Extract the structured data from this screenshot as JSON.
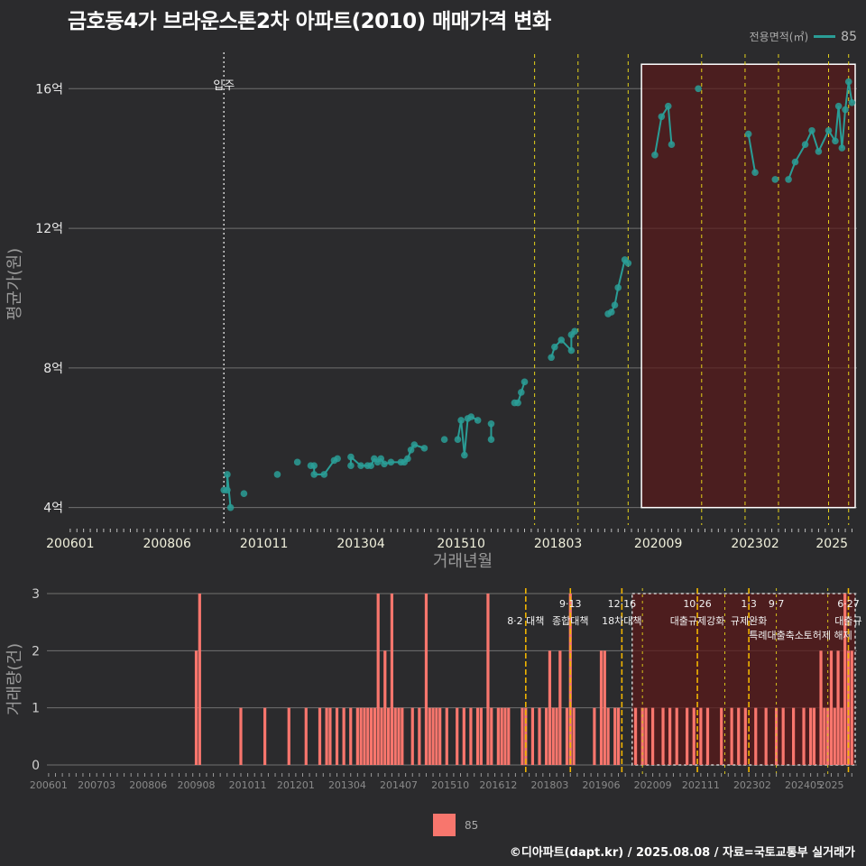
{
  "title": "금호동4가 브라운스톤2차 아파트(2010) 매매가격 변화",
  "legend_top": {
    "title": "전용면적(㎡)",
    "label": "85",
    "color": "#2a9d96"
  },
  "legend_bottom": {
    "label": "85",
    "color": "#f8766d"
  },
  "credit": "©디아파트(dapt.kr) / 2025.08.08 / 자료=국토교통부 실거래가",
  "chart_data": [
    {
      "type": "line",
      "name": "price",
      "xlabel": "거래년월",
      "ylabel": "평균가(원)",
      "x_range": [
        "2006-01",
        "2025-08"
      ],
      "ylim": [
        3.5,
        17.3
      ],
      "yticks": [
        {
          "v": 4,
          "label": "4억"
        },
        {
          "v": 8,
          "label": "8억"
        },
        {
          "v": 12,
          "label": "12억"
        },
        {
          "v": 16,
          "label": "16억"
        }
      ],
      "xticks": [
        "200601",
        "200806",
        "201011",
        "201304",
        "201510",
        "201803",
        "202009",
        "202302",
        "2025"
      ],
      "annotation": {
        "x": "2009-11",
        "label": "입주"
      },
      "policy_lines": [
        "2017-08",
        "2018-09",
        "2019-12",
        "2021-10",
        "2022-11",
        "2023-09",
        "2024-12",
        "2025-06"
      ],
      "highlight": {
        "from": "2020-04",
        "to": "2025-08",
        "ymin": 4,
        "ymax": 16.7
      },
      "series": [
        {
          "name": "85",
          "points": [
            [
              "2009-11",
              4.5
            ],
            [
              "2009-12",
              4.5
            ],
            [
              "2009-12",
              4.95
            ],
            [
              "2010-01",
              4.0
            ],
            [
              "2010-05",
              4.4
            ],
            [
              "2011-03",
              4.95
            ],
            [
              "2011-09",
              5.3
            ],
            [
              "2012-01",
              5.2
            ],
            [
              "2012-02",
              5.2
            ],
            [
              "2012-02",
              4.95
            ],
            [
              "2012-05",
              4.95
            ],
            [
              "2012-08",
              5.35
            ],
            [
              "2012-09",
              5.4
            ],
            [
              "2013-01",
              5.2
            ],
            [
              "2013-01",
              5.45
            ],
            [
              "2013-04",
              5.2
            ],
            [
              "2013-06",
              5.2
            ],
            [
              "2013-07",
              5.2
            ],
            [
              "2013-08",
              5.4
            ],
            [
              "2013-09",
              5.3
            ],
            [
              "2013-10",
              5.4
            ],
            [
              "2013-11",
              5.25
            ],
            [
              "2014-01",
              5.3
            ],
            [
              "2014-04",
              5.3
            ],
            [
              "2014-05",
              5.3
            ],
            [
              "2014-06",
              5.4
            ],
            [
              "2014-07",
              5.65
            ],
            [
              "2014-08",
              5.8
            ],
            [
              "2014-11",
              5.7
            ],
            [
              "2015-05",
              5.95
            ],
            [
              "2015-09",
              5.95
            ],
            [
              "2015-10",
              6.5
            ],
            [
              "2015-11",
              5.5
            ],
            [
              "2015-12",
              6.55
            ],
            [
              "2016-01",
              6.6
            ],
            [
              "2016-03",
              6.5
            ],
            [
              "2016-07",
              5.95
            ],
            [
              "2016-07",
              6.4
            ],
            [
              "2017-02",
              7.0
            ],
            [
              "2017-03",
              7.0
            ],
            [
              "2017-04",
              7.3
            ],
            [
              "2017-05",
              7.6
            ],
            [
              "2018-01",
              8.3
            ],
            [
              "2018-02",
              8.6
            ],
            [
              "2018-04",
              8.8
            ],
            [
              "2018-07",
              8.5
            ],
            [
              "2018-07",
              8.95
            ],
            [
              "2018-08",
              9.05
            ],
            [
              "2019-06",
              9.55
            ],
            [
              "2019-07",
              9.6
            ],
            [
              "2019-08",
              9.8
            ],
            [
              "2019-09",
              10.3
            ],
            [
              "2019-11",
              11.1
            ],
            [
              "2019-12",
              11.0
            ],
            [
              "2020-08",
              14.1
            ],
            [
              "2020-10",
              15.2
            ],
            [
              "2020-12",
              15.5
            ],
            [
              "2021-01",
              14.4
            ],
            [
              "2021-09",
              16.0
            ],
            [
              "2022-12",
              14.7
            ],
            [
              "2023-02",
              13.6
            ],
            [
              "2023-08",
              13.4
            ],
            [
              "2023-12",
              13.4
            ],
            [
              "2024-02",
              13.9
            ],
            [
              "2024-05",
              14.4
            ],
            [
              "2024-07",
              14.8
            ],
            [
              "2024-09",
              14.2
            ],
            [
              "2024-12",
              14.8
            ],
            [
              "2025-02",
              14.5
            ],
            [
              "2025-03",
              15.5
            ],
            [
              "2025-04",
              14.3
            ],
            [
              "2025-05",
              15.4
            ],
            [
              "2025-06",
              16.2
            ],
            [
              "2025-07",
              15.6
            ]
          ]
        }
      ]
    },
    {
      "type": "bar",
      "name": "volume",
      "ylabel": "거래량(건)",
      "ylim": [
        0,
        3
      ],
      "yticks": [
        0,
        1,
        2,
        3
      ],
      "xticks": [
        "200601",
        "200703",
        "200806",
        "200908",
        "201011",
        "201201",
        "201304",
        "201407",
        "201510",
        "201612",
        "201803",
        "201906",
        "202009",
        "202111",
        "202302",
        "202405",
        "2025"
      ],
      "highlight": {
        "from": "2020-03",
        "to": "2025-08",
        "ymin": 0,
        "ymax": 3
      },
      "policies": [
        {
          "x": "2017-08",
          "date": "",
          "text": "8·2 대책",
          "row": 1
        },
        {
          "x": "2018-09",
          "date": "9·13",
          "text": "종합대책",
          "row": 1
        },
        {
          "x": "2019-12",
          "date": "12·16",
          "text": "18차대책",
          "row": 1
        },
        {
          "x": "2020-06",
          "date": "",
          "text": "",
          "row": 0
        },
        {
          "x": "2021-10",
          "date": "10·26",
          "text": "대출규제강화",
          "row": 1
        },
        {
          "x": "2022-06",
          "date": "",
          "text": "",
          "row": 0
        },
        {
          "x": "2023-01",
          "date": "1·3",
          "text": "규제완화",
          "row": 1
        },
        {
          "x": "2023-09",
          "date": "9·7",
          "text": "특례대출축소",
          "row": 2
        },
        {
          "x": "2024-12",
          "date": "",
          "text": "토허제 해제",
          "row": 2
        },
        {
          "x": "2025-06",
          "date": "6·27",
          "text": "대출규",
          "row": 1
        }
      ],
      "bars": [
        [
          "2009-08",
          2
        ],
        [
          "2009-09",
          3
        ],
        [
          "2010-09",
          1
        ],
        [
          "2011-04",
          1
        ],
        [
          "2011-11",
          1
        ],
        [
          "2012-04",
          1
        ],
        [
          "2012-08",
          1
        ],
        [
          "2012-10",
          1
        ],
        [
          "2012-11",
          1
        ],
        [
          "2013-01",
          1
        ],
        [
          "2013-03",
          1
        ],
        [
          "2013-05",
          1
        ],
        [
          "2013-07",
          1
        ],
        [
          "2013-08",
          1
        ],
        [
          "2013-09",
          1
        ],
        [
          "2013-10",
          1
        ],
        [
          "2013-11",
          1
        ],
        [
          "2013-12",
          1
        ],
        [
          "2014-01",
          3
        ],
        [
          "2014-02",
          1
        ],
        [
          "2014-03",
          2
        ],
        [
          "2014-04",
          1
        ],
        [
          "2014-05",
          3
        ],
        [
          "2014-06",
          1
        ],
        [
          "2014-07",
          1
        ],
        [
          "2014-08",
          1
        ],
        [
          "2014-11",
          1
        ],
        [
          "2015-01",
          1
        ],
        [
          "2015-03",
          3
        ],
        [
          "2015-04",
          1
        ],
        [
          "2015-05",
          1
        ],
        [
          "2015-06",
          1
        ],
        [
          "2015-07",
          1
        ],
        [
          "2015-09",
          1
        ],
        [
          "2015-12",
          1
        ],
        [
          "2016-02",
          1
        ],
        [
          "2016-04",
          1
        ],
        [
          "2016-06",
          1
        ],
        [
          "2016-07",
          1
        ],
        [
          "2016-09",
          3
        ],
        [
          "2016-10",
          1
        ],
        [
          "2016-12",
          1
        ],
        [
          "2017-01",
          1
        ],
        [
          "2017-02",
          1
        ],
        [
          "2017-03",
          1
        ],
        [
          "2017-07",
          1
        ],
        [
          "2017-08",
          1
        ],
        [
          "2017-10",
          1
        ],
        [
          "2017-12",
          1
        ],
        [
          "2018-02",
          1
        ],
        [
          "2018-03",
          2
        ],
        [
          "2018-04",
          1
        ],
        [
          "2018-05",
          1
        ],
        [
          "2018-06",
          2
        ],
        [
          "2018-08",
          1
        ],
        [
          "2018-09",
          3
        ],
        [
          "2018-10",
          1
        ],
        [
          "2019-04",
          1
        ],
        [
          "2019-06",
          2
        ],
        [
          "2019-07",
          2
        ],
        [
          "2019-08",
          1
        ],
        [
          "2019-10",
          1
        ],
        [
          "2019-11",
          1
        ],
        [
          "2020-04",
          1
        ],
        [
          "2020-06",
          1
        ],
        [
          "2020-07",
          1
        ],
        [
          "2020-09",
          1
        ],
        [
          "2020-12",
          1
        ],
        [
          "2021-02",
          1
        ],
        [
          "2021-04",
          1
        ],
        [
          "2021-07",
          1
        ],
        [
          "2021-09",
          1
        ],
        [
          "2021-11",
          1
        ],
        [
          "2022-01",
          1
        ],
        [
          "2022-05",
          1
        ],
        [
          "2022-08",
          1
        ],
        [
          "2022-10",
          1
        ],
        [
          "2022-12",
          1
        ],
        [
          "2023-03",
          1
        ],
        [
          "2023-06",
          1
        ],
        [
          "2023-09",
          1
        ],
        [
          "2023-11",
          1
        ],
        [
          "2024-02",
          1
        ],
        [
          "2024-05",
          1
        ],
        [
          "2024-07",
          1
        ],
        [
          "2024-08",
          1
        ],
        [
          "2024-10",
          2
        ],
        [
          "2024-11",
          1
        ],
        [
          "2024-12",
          1
        ],
        [
          "2025-01",
          2
        ],
        [
          "2025-02",
          1
        ],
        [
          "2025-03",
          2
        ],
        [
          "2025-04",
          1
        ],
        [
          "2025-05",
          3
        ],
        [
          "2025-06",
          2
        ],
        [
          "2025-07",
          2
        ]
      ]
    }
  ]
}
